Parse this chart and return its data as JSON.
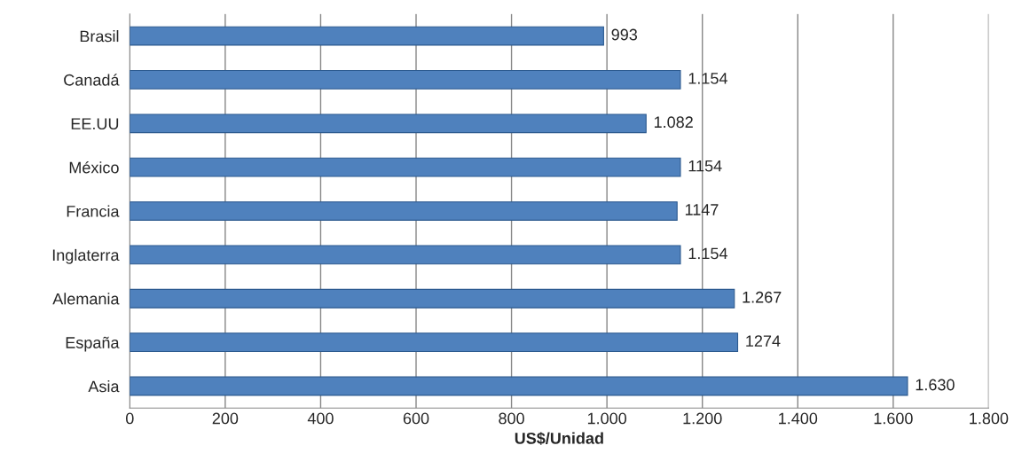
{
  "chart_data": {
    "type": "bar",
    "orientation": "horizontal",
    "xlabel": "US$/Unidad",
    "categories": [
      "Brasil",
      "Canadá",
      "EE.UU",
      "México",
      "Francia",
      "Inglaterra",
      "Alemania",
      "España",
      "Asia"
    ],
    "values": [
      993,
      1154,
      1082,
      1154,
      1147,
      1154,
      1267,
      1274,
      1630
    ],
    "value_labels": [
      "993",
      "1.154",
      "1.082",
      "1154",
      "1147",
      "1.154",
      "1.267",
      "1274",
      "1.630"
    ],
    "color": "#4f81bd",
    "xlim": [
      0,
      1800
    ],
    "xticks": [
      0,
      200,
      400,
      600,
      800,
      {
        "value": 1000,
        "label": "1.000"
      },
      {
        "value": 1200,
        "label": "1.200"
      },
      {
        "value": 1400,
        "label": "1.400"
      },
      {
        "value": 1600,
        "label": "1.600"
      },
      {
        "value": 1800,
        "label": "1.800"
      }
    ],
    "grid": "x"
  }
}
